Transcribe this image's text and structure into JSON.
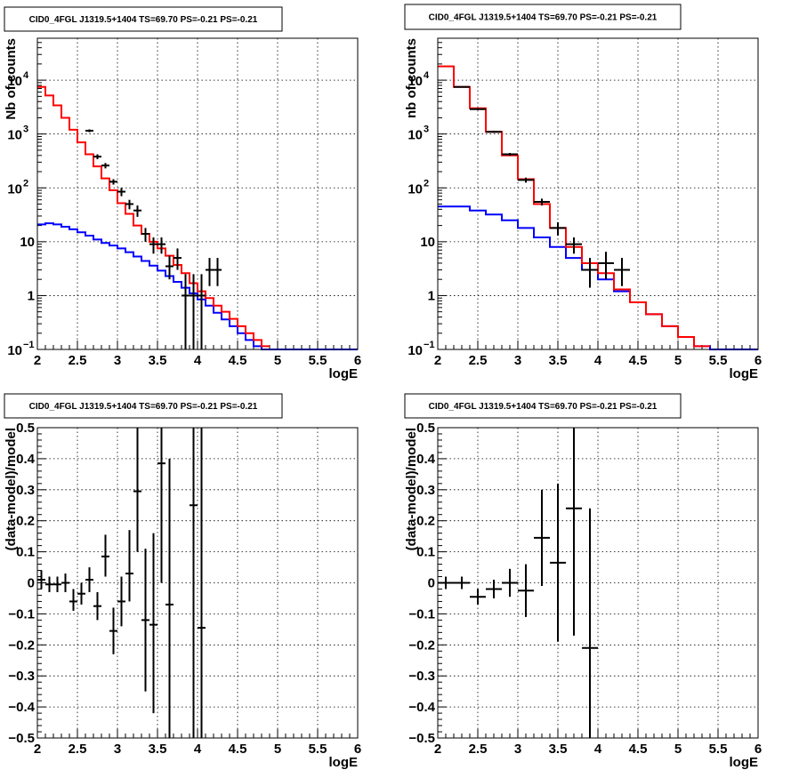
{
  "chart_data": [
    {
      "type": "line",
      "title": "CID0_4FGL J1319.5+1404 TS=69.70 PS=-0.21 PS=-0.21",
      "xlabel": "logE",
      "ylabel": "Nb of counts",
      "xlim": [
        2,
        6
      ],
      "ylim": [
        0.1,
        60000
      ],
      "y_scale": "log",
      "grid": true,
      "x_ticks": [
        {
          "v": 2,
          "l": "2"
        },
        {
          "v": 2.5,
          "l": "2.5"
        },
        {
          "v": 3,
          "l": "3"
        },
        {
          "v": 3.5,
          "l": "3.5"
        },
        {
          "v": 4,
          "l": "4"
        },
        {
          "v": 4.5,
          "l": "4.5"
        },
        {
          "v": 5,
          "l": "5"
        },
        {
          "v": 5.5,
          "l": "5.5"
        },
        {
          "v": 6,
          "l": "6"
        }
      ],
      "y_ticks": [
        {
          "v": 0.1,
          "b": "10",
          "e": "−1"
        },
        {
          "v": 1,
          "l": "1"
        },
        {
          "v": 10,
          "l": "10"
        },
        {
          "v": 100,
          "b": "10",
          "e": "2"
        },
        {
          "v": 1000,
          "b": "10",
          "e": "3"
        },
        {
          "v": 10000,
          "b": "10",
          "e": "4"
        }
      ],
      "series": [
        {
          "color": "#0000ff",
          "kind": "step",
          "bin_width": 0.1,
          "edges_start": 2.0,
          "values": [
            21,
            22,
            21,
            19,
            17,
            15,
            13,
            11,
            9.5,
            8.5,
            7.5,
            6.4,
            5.3,
            4.4,
            3.6,
            2.9,
            2.3,
            1.8,
            1.4,
            1.1,
            0.85,
            0.65,
            0.48,
            0.36,
            0.27,
            0.2,
            0.15,
            0.115,
            0.1,
            0.1,
            0.1,
            0.1,
            0.1,
            0.1,
            0.1,
            0.1,
            0.1,
            0.1,
            0.1,
            0.1
          ]
        },
        {
          "color": "#ff0000",
          "kind": "step",
          "bin_width": 0.1,
          "edges_start": 2.0,
          "values": [
            7500,
            5200,
            3400,
            2000,
            1200,
            700,
            420,
            250,
            150,
            90,
            52,
            33,
            20,
            14,
            10,
            7.5,
            5.5,
            3.7,
            2.6,
            1.7,
            1.2,
            0.9,
            0.65,
            0.5,
            0.37,
            0.27,
            0.2,
            0.15,
            0.115
          ]
        },
        {
          "color": "#000000",
          "kind": "points",
          "xerr": 0.05,
          "x": [
            2.65,
            2.75,
            2.85,
            2.95,
            3.05,
            3.15,
            3.25,
            3.35,
            3.45,
            3.55,
            3.65,
            3.75,
            3.85,
            3.95,
            4.05,
            4.15,
            4.25
          ],
          "y": [
            1150,
            380,
            260,
            130,
            85,
            50,
            38,
            14,
            9,
            9,
            3.5,
            5,
            1,
            1,
            1,
            3,
            3
          ],
          "ylo": [
            1080,
            340,
            230,
            115,
            70,
            40,
            29,
            10,
            6,
            6,
            2,
            3,
            0.1,
            0.1,
            0.1,
            1.5,
            1.5
          ],
          "yhi": [
            1220,
            420,
            290,
            145,
            100,
            60,
            47,
            18,
            12,
            12,
            5.5,
            7.5,
            2.5,
            2.5,
            2.5,
            5,
            5
          ]
        }
      ]
    },
    {
      "type": "line",
      "title": "CID0_4FGL J1319.5+1404 TS=69.70 PS=-0.21 PS=-0.21",
      "xlabel": "logE",
      "ylabel": "nb of counts",
      "xlim": [
        2,
        6
      ],
      "ylim": [
        0.1,
        60000
      ],
      "y_scale": "log",
      "grid": true,
      "x_ticks": [
        {
          "v": 2,
          "l": "2"
        },
        {
          "v": 2.5,
          "l": "2.5"
        },
        {
          "v": 3,
          "l": "3"
        },
        {
          "v": 3.5,
          "l": "3.5"
        },
        {
          "v": 4,
          "l": "4"
        },
        {
          "v": 4.5,
          "l": "4.5"
        },
        {
          "v": 5,
          "l": "5"
        },
        {
          "v": 5.5,
          "l": "5.5"
        },
        {
          "v": 6,
          "l": "6"
        }
      ],
      "y_ticks": [
        {
          "v": 0.1,
          "b": "10",
          "e": "−1"
        },
        {
          "v": 1,
          "l": "1"
        },
        {
          "v": 10,
          "l": "10"
        },
        {
          "v": 100,
          "b": "10",
          "e": "2"
        },
        {
          "v": 1000,
          "b": "10",
          "e": "3"
        },
        {
          "v": 10000,
          "b": "10",
          "e": "4"
        }
      ],
      "series": [
        {
          "color": "#0000ff",
          "kind": "step",
          "bin_width": 0.2,
          "edges_start": 2.0,
          "values": [
            45,
            45,
            38,
            32,
            25,
            18,
            12,
            8,
            5,
            3,
            2,
            1.2,
            0.75,
            0.45,
            0.27,
            0.17,
            0.115,
            0.1,
            0.1,
            0.1
          ]
        },
        {
          "color": "#ff0000",
          "kind": "step",
          "bin_width": 0.2,
          "edges_start": 2.0,
          "values": [
            18000,
            7500,
            3000,
            1100,
            400,
            145,
            50,
            18,
            8,
            4,
            2.6,
            1.3,
            0.75,
            0.45,
            0.27,
            0.17,
            0.115
          ]
        },
        {
          "color": "#000000",
          "kind": "points",
          "xerr": 0.1,
          "x": [
            2.3,
            2.5,
            2.7,
            2.9,
            3.1,
            3.3,
            3.5,
            3.7,
            3.9,
            4.1,
            4.3
          ],
          "y": [
            7500,
            2900,
            1100,
            420,
            140,
            55,
            18,
            9,
            3,
            4,
            3
          ],
          "ylo": [
            7300,
            2800,
            1050,
            395,
            125,
            47,
            13,
            6,
            1.4,
            2,
            1.5
          ],
          "yhi": [
            7700,
            3000,
            1150,
            445,
            155,
            63,
            23,
            12,
            5,
            6.5,
            5
          ]
        }
      ]
    },
    {
      "type": "scatter",
      "title": "CID0_4FGL J1319.5+1404 TS=69.70 PS=-0.21 PS=-0.21",
      "xlabel": "logE",
      "ylabel": "(data-model)/model",
      "xlim": [
        2,
        6
      ],
      "ylim": [
        -0.5,
        0.5
      ],
      "y_scale": "linear",
      "grid": true,
      "x_ticks": [
        {
          "v": 2,
          "l": "2"
        },
        {
          "v": 2.5,
          "l": "2.5"
        },
        {
          "v": 3,
          "l": "3"
        },
        {
          "v": 3.5,
          "l": "3.5"
        },
        {
          "v": 4,
          "l": "4"
        },
        {
          "v": 4.5,
          "l": "4.5"
        },
        {
          "v": 5,
          "l": "5"
        },
        {
          "v": 5.5,
          "l": "5.5"
        },
        {
          "v": 6,
          "l": "6"
        }
      ],
      "y_ticks": [
        {
          "v": -0.5,
          "l": "−0.5"
        },
        {
          "v": -0.4,
          "l": "−0.4"
        },
        {
          "v": -0.3,
          "l": "−0.3"
        },
        {
          "v": -0.2,
          "l": "−0.2"
        },
        {
          "v": -0.1,
          "l": "−0.1"
        },
        {
          "v": 0,
          "l": "0"
        },
        {
          "v": 0.1,
          "l": "0.1"
        },
        {
          "v": 0.2,
          "l": "0.2"
        },
        {
          "v": 0.3,
          "l": "0.3"
        },
        {
          "v": 0.4,
          "l": "0.4"
        },
        {
          "v": 0.5,
          "l": "0.5"
        }
      ],
      "series": [
        {
          "color": "#000000",
          "kind": "points",
          "xerr": 0.05,
          "x": [
            2.05,
            2.15,
            2.25,
            2.35,
            2.45,
            2.55,
            2.65,
            2.75,
            2.85,
            2.95,
            3.05,
            3.15,
            3.25,
            3.35,
            3.45,
            3.55,
            3.65,
            3.95,
            4.05
          ],
          "y": [
            0.01,
            -0.005,
            -0.005,
            0.0,
            -0.06,
            -0.035,
            0.01,
            -0.075,
            0.085,
            -0.155,
            -0.06,
            0.03,
            0.295,
            -0.12,
            -0.135,
            0.385,
            -0.07,
            0.25,
            -0.145
          ],
          "ylo": [
            -0.02,
            -0.03,
            -0.03,
            -0.03,
            -0.09,
            -0.07,
            -0.03,
            -0.12,
            0.02,
            -0.23,
            -0.14,
            -0.06,
            0.1,
            -0.35,
            -0.42,
            0.0,
            -0.5,
            -0.5,
            -0.5
          ],
          "yhi": [
            0.04,
            0.02,
            0.02,
            0.03,
            -0.02,
            0.0,
            0.05,
            -0.03,
            0.155,
            -0.08,
            0.02,
            0.17,
            0.5,
            0.11,
            0.16,
            0.5,
            0.4,
            0.5,
            0.5
          ]
        }
      ]
    },
    {
      "type": "scatter",
      "title": "CID0_4FGL J1319.5+1404 TS=69.70 PS=-0.21 PS=-0.21",
      "xlabel": "logE",
      "ylabel": "(data-model)/model",
      "xlim": [
        2,
        6
      ],
      "ylim": [
        -0.5,
        0.5
      ],
      "y_scale": "linear",
      "grid": true,
      "x_ticks": [
        {
          "v": 2,
          "l": "2"
        },
        {
          "v": 2.5,
          "l": "2.5"
        },
        {
          "v": 3,
          "l": "3"
        },
        {
          "v": 3.5,
          "l": "3.5"
        },
        {
          "v": 4,
          "l": "4"
        },
        {
          "v": 4.5,
          "l": "4.5"
        },
        {
          "v": 5,
          "l": "5"
        },
        {
          "v": 5.5,
          "l": "5.5"
        },
        {
          "v": 6,
          "l": "6"
        }
      ],
      "y_ticks": [
        {
          "v": -0.5,
          "l": "−0.5"
        },
        {
          "v": -0.4,
          "l": "−0.4"
        },
        {
          "v": -0.3,
          "l": "−0.3"
        },
        {
          "v": -0.2,
          "l": "−0.2"
        },
        {
          "v": -0.1,
          "l": "−0.1"
        },
        {
          "v": 0,
          "l": "0"
        },
        {
          "v": 0.1,
          "l": "0.1"
        },
        {
          "v": 0.2,
          "l": "0.2"
        },
        {
          "v": 0.3,
          "l": "0.3"
        },
        {
          "v": 0.4,
          "l": "0.4"
        },
        {
          "v": 0.5,
          "l": "0.5"
        }
      ],
      "series": [
        {
          "color": "#000000",
          "kind": "points",
          "xerr": 0.1,
          "x": [
            2.1,
            2.3,
            2.5,
            2.7,
            2.9,
            3.1,
            3.3,
            3.5,
            3.7,
            3.9
          ],
          "y": [
            0.0,
            0.0,
            -0.045,
            -0.02,
            0.0,
            -0.025,
            0.145,
            0.065,
            0.24,
            -0.21
          ],
          "ylo": [
            -0.02,
            -0.02,
            -0.07,
            -0.05,
            -0.045,
            -0.11,
            -0.01,
            -0.19,
            -0.17,
            -0.5
          ],
          "yhi": [
            0.02,
            0.02,
            -0.02,
            0.01,
            0.045,
            0.06,
            0.3,
            0.32,
            0.5,
            0.24
          ]
        }
      ]
    }
  ]
}
